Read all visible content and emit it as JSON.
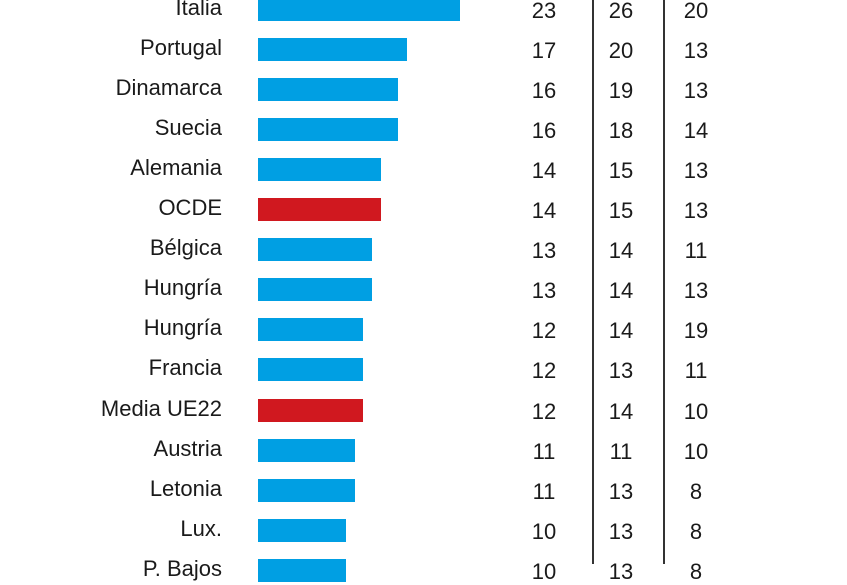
{
  "chart_data": {
    "type": "table",
    "categories": [
      "Italia",
      "Portugal",
      "Dinamarca",
      "Suecia",
      "Alemania",
      "OCDE",
      "Bélgica",
      "Hungría",
      "Hungría",
      "Francia",
      "Media UE22",
      "Austria",
      "Letonia",
      "Lux.",
      "P. Bajos"
    ],
    "highlighted": [
      "OCDE",
      "Media UE22"
    ],
    "series": [
      {
        "values": [
          23,
          17,
          16,
          16,
          14,
          14,
          13,
          13,
          12,
          12,
          12,
          11,
          11,
          10,
          10
        ]
      },
      {
        "values": [
          26,
          20,
          19,
          18,
          15,
          15,
          14,
          14,
          14,
          13,
          14,
          11,
          13,
          13,
          13
        ]
      },
      {
        "values": [
          20,
          13,
          13,
          14,
          13,
          13,
          11,
          13,
          19,
          11,
          10,
          10,
          8,
          8,
          8
        ]
      }
    ],
    "bar_series_index": 0,
    "xlim": [
      0,
      23
    ]
  },
  "colors": {
    "bar": "#009fe3",
    "highlight": "#d0181f",
    "text": "#1a1a1a",
    "divider": "#333333"
  }
}
